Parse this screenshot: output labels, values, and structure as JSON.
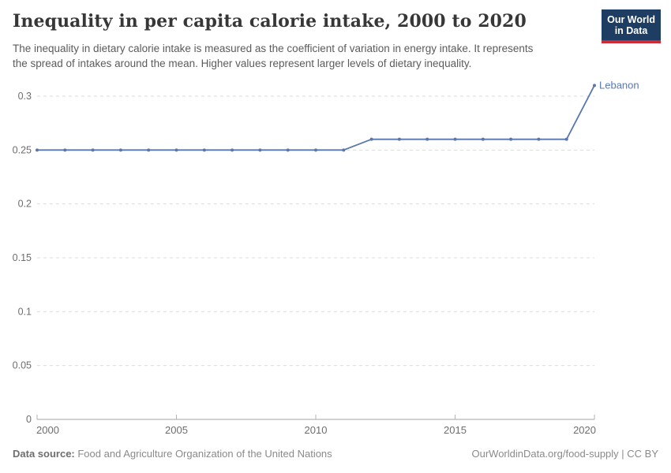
{
  "header": {
    "title": "Inequality in per capita calorie intake, 2000 to 2020",
    "subtitle_lines": [
      "The inequality in dietary calorie intake is measured as the coefficient of variation in energy intake. It represents",
      "the spread of intakes around the mean. Higher values represent larger levels of dietary inequality."
    ],
    "logo": {
      "line1": "Our World",
      "line2": "in Data",
      "bg_color": "#1d3d63",
      "bar_color": "#cf2a36"
    }
  },
  "chart_data": {
    "type": "line",
    "title": "Inequality in per capita calorie intake, 2000 to 2020",
    "xlabel": "",
    "ylabel": "",
    "xlim": [
      2000,
      2020
    ],
    "ylim": [
      0,
      0.3
    ],
    "grid": "horizontal-dashed",
    "legend_position": "end-of-line-label",
    "x_ticks": [
      2000,
      2005,
      2010,
      2015,
      2020
    ],
    "y_ticks": [
      0,
      0.05,
      0.1,
      0.15,
      0.2,
      0.25,
      0.3
    ],
    "y_tick_labels": [
      "0",
      "0.05",
      "0.1",
      "0.15",
      "0.2",
      "0.25",
      "0.3"
    ],
    "grid_color": "#dcdcdc",
    "axis_color": "#a3a3a3",
    "tick_text_color": "#6e6e6e",
    "series": [
      {
        "name": "Lebanon",
        "color": "#5777b0",
        "label_color": "#5878b7",
        "x": [
          2000,
          2001,
          2002,
          2003,
          2004,
          2005,
          2006,
          2007,
          2008,
          2009,
          2010,
          2011,
          2012,
          2013,
          2014,
          2015,
          2016,
          2017,
          2018,
          2019,
          2020
        ],
        "values": [
          0.25,
          0.25,
          0.25,
          0.25,
          0.25,
          0.25,
          0.25,
          0.25,
          0.25,
          0.25,
          0.25,
          0.25,
          0.26,
          0.26,
          0.26,
          0.26,
          0.26,
          0.26,
          0.26,
          0.26,
          0.31
        ]
      }
    ]
  },
  "footer": {
    "source_label": "Data source:",
    "source_text": " Food and Agriculture Organization of the United Nations",
    "link_text": "OurWorldinData.org/food-supply | CC BY"
  }
}
